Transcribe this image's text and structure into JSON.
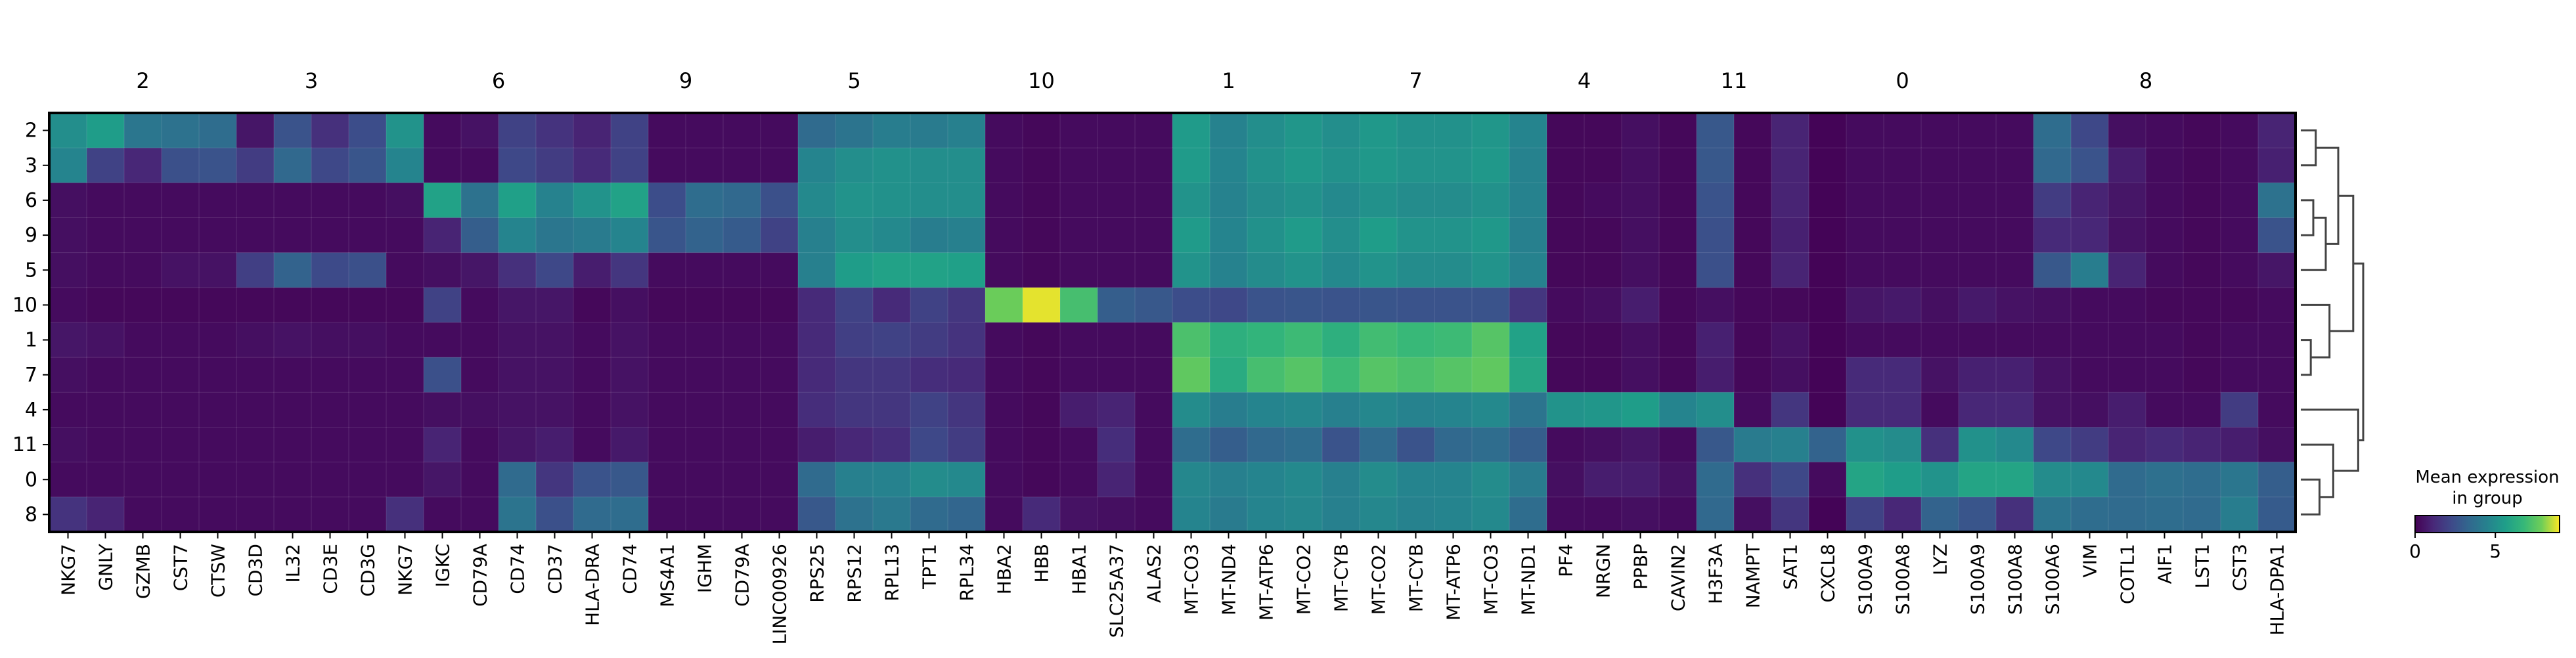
{
  "chart_data": {
    "type": "heatmap",
    "title": "",
    "xlabel": "",
    "ylabel": "",
    "colormap": "viridis",
    "value_range": [
      0,
      9
    ],
    "rows": [
      "2",
      "3",
      "6",
      "9",
      "5",
      "10",
      "1",
      "7",
      "4",
      "11",
      "0",
      "8"
    ],
    "columns": [
      "NKG7",
      "GNLY",
      "GZMB",
      "CST7",
      "CTSW",
      "CD3D",
      "IL32",
      "CD3E",
      "CD3G",
      "NKG7",
      "IGKC",
      "CD79A",
      "CD74",
      "CD37",
      "HLA-DRA",
      "CD74",
      "MS4A1",
      "IGHM",
      "CD79A",
      "LINC00926",
      "RPS25",
      "RPS12",
      "RPL13",
      "TPT1",
      "RPL34",
      "HBA2",
      "HBB",
      "HBA1",
      "SLC25A37",
      "ALAS2",
      "MT-CO3",
      "MT-ND4",
      "MT-ATP6",
      "MT-CO2",
      "MT-CYB",
      "MT-CO2",
      "MT-CYB",
      "MT-ATP6",
      "MT-CO3",
      "MT-ND1",
      "PF4",
      "NRGN",
      "PPBP",
      "CAVIN2",
      "H3F3A",
      "NAMPT",
      "SAT1",
      "CXCL8",
      "S100A9",
      "S100A8",
      "LYZ",
      "S100A9",
      "S100A8",
      "S100A6",
      "VIM",
      "COTL1",
      "AIF1",
      "LST1",
      "CST3",
      "HLA-DPA1"
    ],
    "groups": [
      {
        "label": "2",
        "span": 5
      },
      {
        "label": "3",
        "span": 4
      },
      {
        "label": "6",
        "span": 6
      },
      {
        "label": "9",
        "span": 4
      },
      {
        "label": "5",
        "span": 5
      },
      {
        "label": "10",
        "span": 5
      },
      {
        "label": "1",
        "span": 5
      },
      {
        "label": "7",
        "span": 5
      },
      {
        "label": "4",
        "span": 4
      },
      {
        "label": "11",
        "span": 4
      },
      {
        "label": "0",
        "span": 5
      },
      {
        "label": "8",
        "span": 8
      }
    ],
    "values": [
      [
        5.0,
        5.6,
        4.0,
        3.8,
        3.6,
        0.6,
        2.6,
        1.4,
        2.4,
        5.2,
        0.3,
        0.5,
        2.0,
        1.5,
        1.0,
        2.0,
        0.3,
        0.3,
        0.3,
        0.3,
        3.5,
        3.9,
        4.3,
        4.2,
        4.4,
        0.3,
        0.2,
        0.3,
        0.3,
        0.3,
        5.5,
        4.5,
        5.0,
        5.3,
        5.0,
        5.4,
        5.1,
        5.1,
        5.3,
        4.6,
        0.2,
        0.2,
        0.4,
        0.2,
        2.8,
        0.2,
        1.0,
        0.1,
        0.3,
        0.3,
        0.3,
        0.3,
        0.3,
        3.6,
        2.2,
        0.4,
        0.3,
        0.2,
        0.3,
        1.0
      ],
      [
        4.6,
        2.0,
        1.1,
        2.5,
        2.6,
        1.8,
        3.4,
        2.2,
        2.7,
        4.6,
        0.3,
        0.3,
        2.2,
        1.8,
        1.2,
        2.0,
        0.3,
        0.3,
        0.3,
        0.3,
        4.6,
        5.0,
        5.1,
        5.0,
        5.0,
        0.3,
        0.2,
        0.3,
        0.3,
        0.3,
        5.5,
        4.6,
        5.1,
        5.4,
        5.1,
        5.4,
        5.2,
        5.2,
        5.4,
        4.5,
        0.2,
        0.2,
        0.4,
        0.2,
        2.8,
        0.2,
        1.0,
        0.1,
        0.3,
        0.3,
        0.3,
        0.3,
        0.3,
        3.4,
        2.6,
        0.8,
        0.3,
        0.2,
        0.3,
        0.9
      ],
      [
        0.4,
        0.3,
        0.3,
        0.3,
        0.3,
        0.3,
        0.3,
        0.3,
        0.3,
        0.4,
        5.8,
        3.8,
        5.7,
        4.5,
        5.2,
        5.8,
        2.4,
        3.6,
        3.4,
        2.5,
        4.8,
        5.2,
        5.1,
        5.0,
        5.0,
        0.3,
        0.2,
        0.3,
        0.3,
        0.3,
        5.2,
        4.5,
        4.9,
        5.1,
        4.8,
        5.1,
        4.9,
        4.9,
        5.1,
        4.5,
        0.2,
        0.3,
        0.4,
        0.2,
        2.6,
        0.2,
        1.0,
        0.1,
        0.3,
        0.3,
        0.3,
        0.3,
        0.3,
        1.8,
        1.0,
        0.6,
        0.3,
        0.2,
        0.3,
        3.8
      ],
      [
        0.4,
        0.3,
        0.3,
        0.3,
        0.3,
        0.3,
        0.3,
        0.3,
        0.3,
        0.3,
        1.0,
        3.0,
        4.6,
        4.0,
        4.2,
        4.6,
        2.7,
        3.2,
        2.9,
        2.0,
        4.4,
        5.0,
        4.8,
        4.3,
        4.4,
        0.3,
        0.2,
        0.3,
        0.3,
        0.3,
        5.5,
        4.6,
        5.1,
        5.5,
        5.0,
        5.6,
        5.2,
        5.2,
        5.4,
        4.4,
        0.2,
        0.2,
        0.4,
        0.2,
        2.5,
        0.2,
        0.9,
        0.1,
        0.3,
        0.3,
        0.3,
        0.3,
        0.3,
        1.2,
        1.1,
        0.5,
        0.3,
        0.2,
        0.3,
        2.6
      ],
      [
        0.4,
        0.3,
        0.3,
        0.5,
        0.5,
        1.9,
        3.2,
        2.3,
        2.5,
        0.3,
        0.4,
        0.6,
        1.4,
        2.2,
        0.8,
        1.6,
        0.3,
        0.3,
        0.3,
        0.3,
        4.4,
        5.6,
        5.8,
        5.8,
        5.7,
        0.3,
        0.2,
        0.3,
        0.3,
        0.3,
        5.2,
        4.5,
        4.9,
        5.2,
        4.8,
        5.2,
        4.9,
        4.9,
        5.2,
        4.5,
        0.2,
        0.2,
        0.4,
        0.2,
        2.5,
        0.2,
        1.0,
        0.1,
        0.3,
        0.3,
        0.3,
        0.3,
        0.3,
        2.8,
        4.3,
        1.0,
        0.3,
        0.2,
        0.3,
        0.6
      ],
      [
        0.3,
        0.2,
        0.2,
        0.2,
        0.2,
        0.2,
        0.2,
        0.2,
        0.2,
        0.2,
        2.0,
        0.3,
        0.6,
        0.6,
        0.2,
        0.4,
        0.2,
        0.2,
        0.2,
        0.2,
        1.2,
        2.0,
        1.2,
        2.0,
        1.6,
        7.8,
        8.8,
        7.1,
        3.0,
        2.8,
        2.4,
        2.2,
        2.6,
        2.7,
        2.6,
        2.7,
        2.6,
        2.6,
        2.6,
        1.6,
        0.3,
        0.4,
        0.8,
        0.2,
        0.4,
        0.2,
        0.2,
        0.1,
        0.6,
        0.7,
        0.4,
        0.7,
        0.5,
        0.4,
        0.3,
        0.3,
        0.2,
        0.2,
        0.2,
        0.3
      ],
      [
        0.6,
        0.5,
        0.3,
        0.3,
        0.3,
        0.4,
        0.5,
        0.4,
        0.4,
        0.3,
        0.3,
        0.3,
        0.5,
        0.5,
        0.3,
        0.5,
        0.3,
        0.3,
        0.3,
        0.3,
        1.2,
        1.9,
        2.0,
        1.8,
        1.5,
        0.3,
        0.2,
        0.3,
        0.3,
        0.3,
        7.2,
        6.4,
        6.6,
        6.9,
        6.4,
        7.0,
        6.8,
        6.9,
        7.4,
        5.8,
        0.2,
        0.2,
        0.4,
        0.2,
        0.9,
        0.2,
        0.5,
        0.1,
        0.3,
        0.3,
        0.3,
        0.3,
        0.3,
        0.3,
        0.3,
        0.3,
        0.3,
        0.2,
        0.3,
        0.3
      ],
      [
        0.4,
        0.3,
        0.3,
        0.3,
        0.3,
        0.3,
        0.3,
        0.3,
        0.3,
        0.3,
        2.5,
        0.3,
        0.5,
        0.5,
        0.3,
        0.5,
        0.3,
        0.3,
        0.3,
        0.3,
        1.2,
        1.6,
        1.6,
        1.3,
        1.2,
        0.3,
        0.2,
        0.3,
        0.3,
        0.3,
        7.6,
        6.2,
        7.1,
        7.4,
        6.9,
        7.4,
        7.2,
        7.4,
        7.6,
        6.0,
        0.2,
        0.2,
        0.4,
        0.2,
        0.8,
        0.2,
        0.4,
        0.1,
        1.2,
        1.2,
        0.5,
        0.9,
        0.9,
        0.5,
        0.3,
        0.3,
        0.3,
        0.2,
        0.3,
        0.3
      ],
      [
        0.3,
        0.3,
        0.3,
        0.3,
        0.3,
        0.3,
        0.3,
        0.3,
        0.3,
        0.3,
        0.4,
        0.4,
        0.5,
        0.5,
        0.3,
        0.5,
        0.3,
        0.3,
        0.3,
        0.3,
        1.3,
        1.6,
        1.6,
        2.0,
        1.6,
        0.3,
        0.2,
        0.8,
        1.0,
        0.3,
        4.9,
        4.3,
        4.6,
        4.7,
        4.4,
        4.7,
        4.5,
        4.6,
        4.8,
        3.9,
        5.2,
        5.3,
        5.6,
        4.6,
        5.0,
        0.3,
        1.6,
        0.1,
        1.2,
        1.2,
        0.3,
        1.1,
        1.1,
        0.5,
        0.4,
        0.8,
        0.3,
        0.3,
        1.8,
        0.3
      ],
      [
        0.4,
        0.3,
        0.3,
        0.3,
        0.3,
        0.3,
        0.3,
        0.3,
        0.3,
        0.3,
        1.0,
        0.3,
        0.6,
        0.8,
        0.3,
        0.7,
        0.3,
        0.3,
        0.3,
        0.3,
        0.8,
        1.1,
        1.3,
        2.2,
        1.8,
        0.3,
        0.2,
        0.3,
        1.3,
        0.3,
        3.6,
        3.0,
        3.4,
        3.6,
        2.6,
        3.5,
        2.6,
        3.4,
        3.6,
        3.0,
        0.3,
        0.4,
        0.6,
        0.3,
        2.8,
        4.2,
        4.4,
        3.2,
        5.1,
        4.9,
        1.4,
        5.1,
        4.8,
        2.2,
        1.8,
        1.0,
        1.2,
        1.0,
        0.8,
        0.4
      ],
      [
        0.3,
        0.3,
        0.3,
        0.3,
        0.3,
        0.3,
        0.3,
        0.3,
        0.3,
        0.3,
        0.6,
        0.3,
        3.5,
        1.6,
        2.6,
        2.8,
        0.3,
        0.3,
        0.3,
        0.3,
        3.5,
        4.4,
        4.5,
        4.9,
        4.8,
        0.3,
        0.2,
        0.3,
        1.0,
        0.3,
        4.7,
        4.4,
        4.6,
        4.8,
        4.4,
        4.9,
        4.6,
        4.6,
        4.9,
        4.2,
        0.4,
        0.8,
        0.8,
        0.5,
        3.5,
        1.4,
        2.2,
        0.3,
        5.9,
        5.6,
        5.2,
        5.9,
        5.9,
        4.9,
        4.8,
        3.5,
        3.7,
        3.6,
        4.0,
        3.0
      ],
      [
        1.5,
        1.0,
        0.3,
        0.3,
        0.3,
        0.3,
        0.3,
        0.3,
        0.3,
        1.4,
        0.3,
        0.3,
        3.9,
        2.5,
        3.5,
        3.6,
        0.3,
        0.3,
        0.3,
        0.3,
        2.8,
        3.8,
        4.1,
        3.5,
        3.3,
        0.3,
        1.2,
        0.5,
        0.4,
        0.3,
        4.6,
        4.2,
        4.6,
        4.7,
        4.4,
        4.7,
        4.5,
        4.6,
        4.8,
        3.6,
        0.3,
        0.3,
        0.4,
        0.3,
        3.4,
        0.4,
        1.6,
        0.1,
        2.0,
        1.1,
        3.2,
        2.7,
        1.4,
        3.9,
        3.6,
        3.5,
        3.6,
        3.5,
        4.3,
        2.9
      ]
    ],
    "dendrogram": {
      "leaf_order": [
        "2",
        "3",
        "6",
        "9",
        "5",
        "10",
        "1",
        "7",
        "4",
        "11",
        "0",
        "8"
      ],
      "merges": [
        {
          "a": 0,
          "b": 1,
          "height": 1.2
        },
        {
          "a": 2,
          "b": 3,
          "height": 1.0
        },
        {
          "a": 13,
          "b": 4,
          "height": 2.0
        },
        {
          "a": 12,
          "b": 14,
          "height": 3.0
        },
        {
          "a": 6,
          "b": 7,
          "height": 0.8
        },
        {
          "a": 5,
          "b": 16,
          "height": 2.3
        },
        {
          "a": 15,
          "b": 17,
          "height": 4.2
        },
        {
          "a": 10,
          "b": 11,
          "height": 1.5
        },
        {
          "a": 9,
          "b": 19,
          "height": 2.6
        },
        {
          "a": 8,
          "b": 20,
          "height": 4.6
        },
        {
          "a": 18,
          "b": 21,
          "height": 5.0
        }
      ]
    },
    "colorbar": {
      "label_line1": "Mean expression",
      "label_line2": "in group",
      "ticks": [
        0,
        5
      ],
      "range": [
        0,
        9
      ]
    }
  }
}
